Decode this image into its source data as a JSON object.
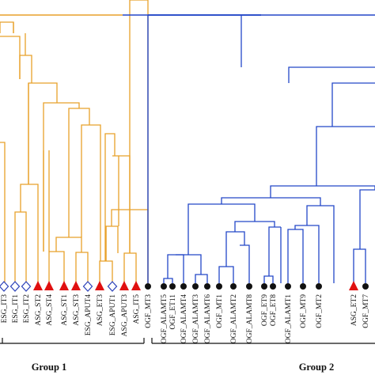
{
  "colors": {
    "group1": "#e8a12a",
    "group2": "#2347c8",
    "circle": "#111111",
    "triangle": "#e01010",
    "diamond": "#2a3fb8",
    "axis": "#111111"
  },
  "groups": [
    {
      "label": "Group 1"
    },
    {
      "label": "Group 2"
    }
  ],
  "leaves": [
    {
      "label": "ESG_IT3",
      "marker": "diamond"
    },
    {
      "label": "ESG_IT1",
      "marker": "diamond"
    },
    {
      "label": "ESG_IT2",
      "marker": "diamond"
    },
    {
      "label": "ASG_ST2",
      "marker": "triangle"
    },
    {
      "label": "ASG_ST4",
      "marker": "triangle"
    },
    {
      "label": "ASG_ST1",
      "marker": "triangle"
    },
    {
      "label": "ASG_ST3",
      "marker": "triangle"
    },
    {
      "label": "ESG_APUT4",
      "marker": "diamond"
    },
    {
      "label": "ASG_ET3",
      "marker": "triangle"
    },
    {
      "label": "ESG_APUT1",
      "marker": "diamond"
    },
    {
      "label": "ASG_APUT3",
      "marker": "triangle"
    },
    {
      "label": "ASG_IT5",
      "marker": "triangle"
    },
    {
      "label": "OGF_MT3",
      "marker": "circle"
    },
    {
      "label": "OGF_ALAMT5",
      "marker": "circle"
    },
    {
      "label": "OGF_ET11",
      "marker": "circle"
    },
    {
      "label": "OGF_ALAMT4",
      "marker": "circle"
    },
    {
      "label": "OGF_ALAMT3",
      "marker": "circle"
    },
    {
      "label": "OGF_ALAMT6",
      "marker": "circle"
    },
    {
      "label": "OGF_MT1",
      "marker": "circle"
    },
    {
      "label": "OGF_ALAMT2",
      "marker": "circle"
    },
    {
      "label": "OGF_ALAMT8",
      "marker": "circle"
    },
    {
      "label": "OGF_ET9",
      "marker": "circle"
    },
    {
      "label": "OGF_ET8",
      "marker": "circle"
    },
    {
      "label": "OGF_ALAMT1",
      "marker": "circle"
    },
    {
      "label": "OGF_MT9",
      "marker": "circle"
    },
    {
      "label": "OGF_MT2",
      "marker": "circle"
    },
    {
      "label": "ASG_ET2",
      "marker": "triangle"
    },
    {
      "label": "OGF_MT7",
      "marker": "circle"
    }
  ]
}
